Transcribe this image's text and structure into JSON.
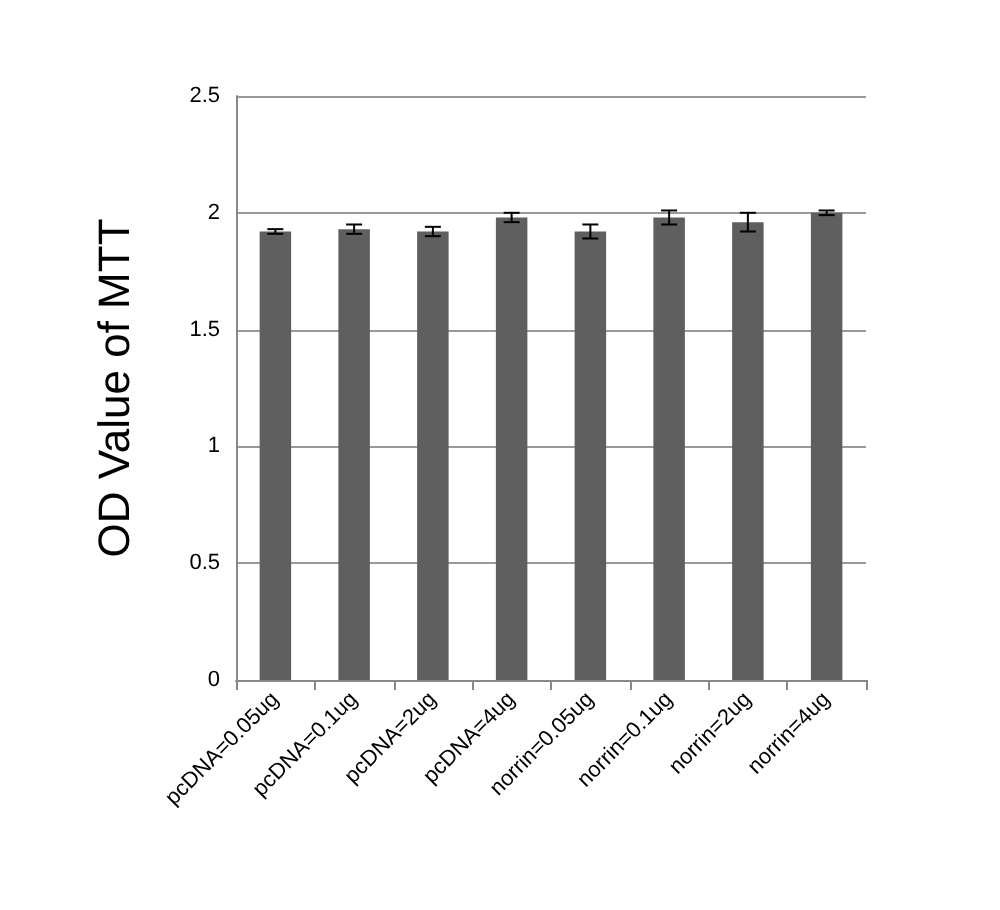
{
  "chart_data": {
    "type": "bar",
    "ylabel": "OD Value of MTT",
    "categories": [
      "pcDNA=0.05ug",
      "pcDNA=0.1ug",
      "pcDNA=2ug",
      "pcDNA=4ug",
      "norrin=0.05ug",
      "norrin=0.1ug",
      "norrin=2ug",
      "norrin=4ug"
    ],
    "values": [
      1.92,
      1.93,
      1.92,
      1.98,
      1.92,
      1.98,
      1.96,
      2.0
    ],
    "errors": [
      0.01,
      0.02,
      0.02,
      0.02,
      0.03,
      0.03,
      0.04,
      0.01
    ],
    "color": "#5f5f5f",
    "ylim": [
      0,
      2.5
    ],
    "yticks": [
      0,
      0.5,
      1,
      1.5,
      2,
      2.5
    ],
    "grid": "y"
  }
}
